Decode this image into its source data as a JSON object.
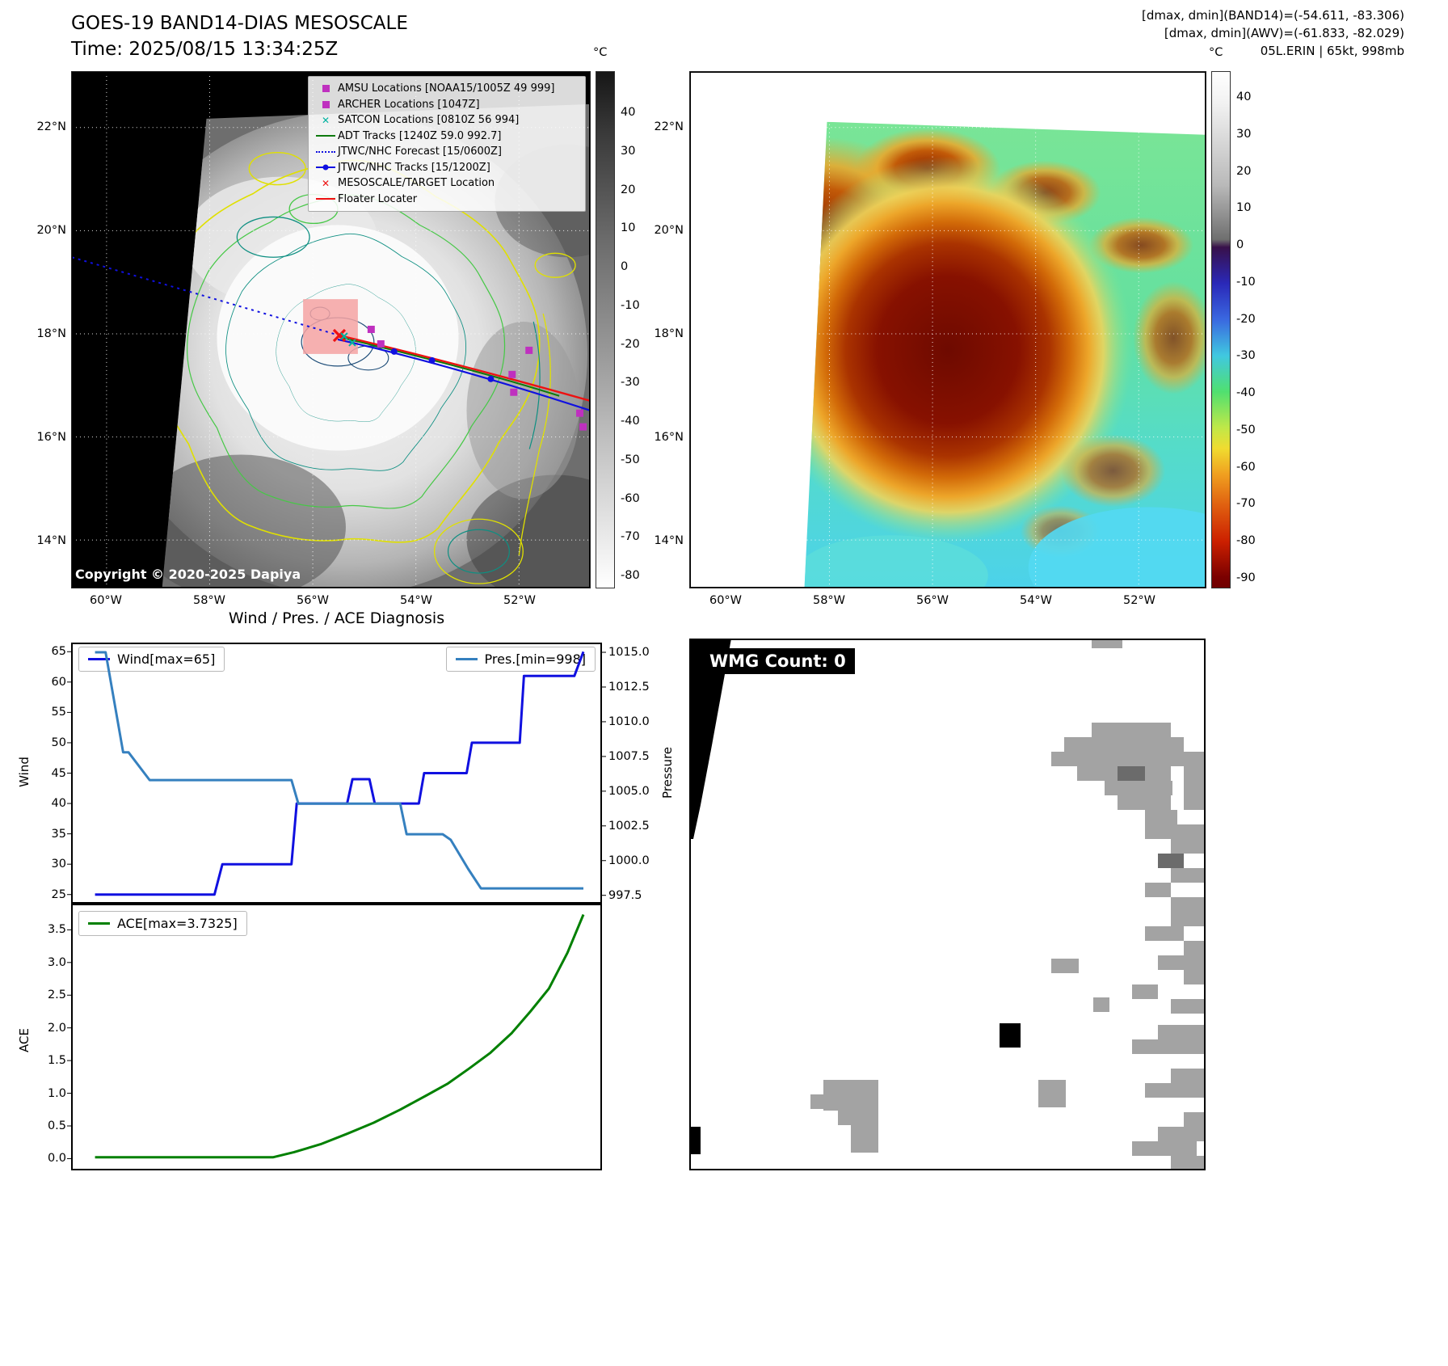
{
  "header": {
    "title": "GOES-19 BAND14-DIAS MESOSCALE",
    "time": "Time: 2025/08/15 13:34:25Z",
    "dminmax_band14": "[dmax, dmin](BAND14)=(-54.611, -83.306)",
    "dminmax_awv": "[dmax, dmin](AWV)=(-61.833, -82.029)",
    "storm": "05L.ERIN | 65kt, 998mb"
  },
  "left_map": {
    "lat_ticks": [
      "22°N",
      "20°N",
      "18°N",
      "16°N",
      "14°N"
    ],
    "lon_ticks": [
      "60°W",
      "58°W",
      "56°W",
      "54°W",
      "52°W"
    ],
    "colorbar_label": "°C",
    "colorbar_ticks": [
      "40",
      "30",
      "20",
      "10",
      "0",
      "-10",
      "-20",
      "-30",
      "-40",
      "-50",
      "-60",
      "-70",
      "-80"
    ],
    "copyright": "Copyright © 2020-2025 Dapiya",
    "legend": [
      {
        "label": "AMSU Locations [NOAA15/1005Z 49 999]",
        "marker": "square",
        "color": "#bf30bf"
      },
      {
        "label": "ARCHER Locations [1047Z]",
        "marker": "square",
        "color": "#bf30bf"
      },
      {
        "label": "SATCON Locations [0810Z 56 994]",
        "marker": "x",
        "color": "#00b2a0"
      },
      {
        "label": "ADT Tracks [1240Z 59.0 992.7]",
        "marker": "line",
        "color": "#0e7a0e"
      },
      {
        "label": "JTWC/NHC Forecast [15/0600Z]",
        "marker": "dotted",
        "color": "#1010e0"
      },
      {
        "label": "JTWC/NHC Tracks [15/1200Z]",
        "marker": "line-dot",
        "color": "#1010e0"
      },
      {
        "label": "MESOSCALE/TARGET Location",
        "marker": "x",
        "color": "#ee1111"
      },
      {
        "label": "Floater Locater",
        "marker": "line",
        "color": "#ee1111"
      }
    ]
  },
  "right_map": {
    "lat_ticks": [
      "22°N",
      "20°N",
      "18°N",
      "16°N",
      "14°N"
    ],
    "lon_ticks": [
      "60°W",
      "58°W",
      "56°W",
      "54°W",
      "52°W"
    ],
    "colorbar_label": "°C",
    "colorbar_ticks": [
      "40",
      "30",
      "20",
      "10",
      "0",
      "-10",
      "-20",
      "-30",
      "-40",
      "-50",
      "-60",
      "-70",
      "-80",
      "-90"
    ]
  },
  "wmg": {
    "count_label": "WMG Count: 0"
  },
  "section_title": "Wind / Pres. / ACE Diagnosis",
  "chart_data": [
    {
      "id": "wind-pres",
      "type": "line",
      "title": "Wind / Pres. / ACE Diagnosis",
      "ylabel_left": "Wind",
      "ylabel_right": "Pressure",
      "ylim_left": [
        23.5,
        66.5
      ],
      "ylim_right": [
        996.9,
        1015.7
      ],
      "yticks_left": [
        "65",
        "60",
        "55",
        "50",
        "45",
        "40",
        "35",
        "30",
        "25"
      ],
      "yticks_right": [
        "1015.0",
        "1012.5",
        "1010.0",
        "1007.5",
        "1005.0",
        "1002.5",
        "1000.0",
        "997.5"
      ],
      "series": [
        {
          "name": "Wind[max=65]",
          "axis": "left",
          "color": "#1010e0",
          "x": [
            0.045,
            0.27,
            0.285,
            0.415,
            0.425,
            0.52,
            0.53,
            0.562,
            0.572,
            0.655,
            0.665,
            0.745,
            0.755,
            0.845,
            0.853,
            0.868,
            0.948,
            0.965
          ],
          "y": [
            25,
            25,
            30,
            30,
            40,
            40,
            44,
            44,
            40,
            40,
            45,
            45,
            50,
            50,
            61,
            61,
            61,
            65
          ]
        },
        {
          "name": "Pres.[min=998]",
          "axis": "right",
          "color": "#3580bf",
          "x": [
            0.045,
            0.065,
            0.098,
            0.108,
            0.148,
            0.158,
            0.415,
            0.428,
            0.62,
            0.632,
            0.7,
            0.715,
            0.748,
            0.772,
            0.965
          ],
          "y": [
            1015.0,
            1015.0,
            1007.8,
            1007.8,
            1005.8,
            1005.8,
            1005.8,
            1004.1,
            1004.1,
            1001.9,
            1001.9,
            1001.5,
            999.4,
            998.0,
            998.0
          ]
        }
      ]
    },
    {
      "id": "ace",
      "type": "line",
      "ylabel_left": "ACE",
      "ylim_left": [
        -0.18,
        3.9
      ],
      "yticks_left": [
        "3.5",
        "3.0",
        "2.5",
        "2.0",
        "1.5",
        "1.0",
        "0.5",
        "0.0"
      ],
      "series": [
        {
          "name": "ACE[max=3.7325]",
          "axis": "left",
          "color": "#008000",
          "x": [
            0.045,
            0.38,
            0.42,
            0.47,
            0.52,
            0.57,
            0.62,
            0.67,
            0.71,
            0.75,
            0.79,
            0.83,
            0.865,
            0.9,
            0.935,
            0.965
          ],
          "y": [
            0.02,
            0.02,
            0.1,
            0.22,
            0.38,
            0.55,
            0.75,
            0.97,
            1.15,
            1.38,
            1.62,
            1.92,
            2.25,
            2.6,
            3.15,
            3.7325
          ]
        }
      ]
    }
  ]
}
